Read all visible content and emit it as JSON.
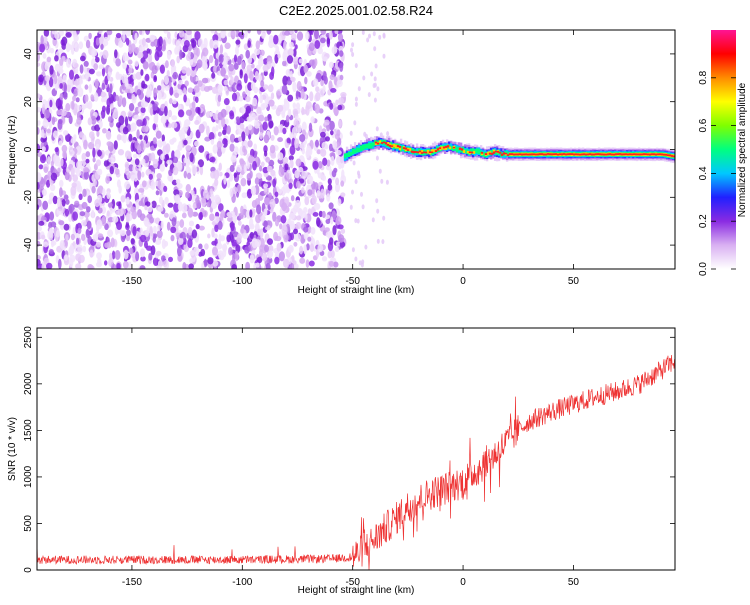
{
  "title": "C2E2.2025.001.02.58.R24",
  "chart_data": [
    {
      "type": "heatmap",
      "xlabel": "Height of straight line (km)",
      "ylabel": "Frequency (Hz)",
      "xlim": [
        -193,
        96
      ],
      "ylim": [
        -50,
        50
      ],
      "x_ticks": [
        -150,
        -100,
        -50,
        0,
        50
      ],
      "y_ticks": [
        -40,
        -20,
        0,
        20,
        40
      ],
      "colorbar": {
        "label": "Normalized spectral amplitude",
        "range": [
          0,
          1
        ],
        "ticks": [
          "0.0",
          "0.2",
          "0.4",
          "0.6",
          "0.8"
        ],
        "colors": [
          "#ffffff",
          "#d9b0f2",
          "#8a2be2",
          "#2020ff",
          "#00c8ff",
          "#00ff80",
          "#7fff00",
          "#ffff00",
          "#ff8c00",
          "#ff0000",
          "#ff1493"
        ]
      },
      "noise_region_x": [
        -193,
        -54
      ],
      "signal_track": {
        "x": [
          -54,
          -50,
          -46,
          -42,
          -38,
          -34,
          -30,
          -26,
          -22,
          -18,
          -14,
          -10,
          -6,
          -2,
          2,
          6,
          10,
          14,
          18,
          22,
          30,
          40,
          50,
          60,
          70,
          80,
          90,
          96
        ],
        "freq": [
          -3,
          -1,
          1,
          2,
          3,
          2,
          1,
          0,
          -1,
          -1,
          -1,
          1,
          1,
          0,
          -1,
          -1,
          -2,
          -1,
          -2,
          -2,
          -2,
          -2,
          -2,
          -2,
          -2,
          -2,
          -2,
          -3
        ]
      }
    },
    {
      "type": "line",
      "xlabel": "Height of straight line (km)",
      "ylabel": "SNR (10 * v/v)",
      "xlim": [
        -193,
        96
      ],
      "ylim": [
        0,
        2600
      ],
      "x_ticks": [
        -150,
        -100,
        -50,
        0,
        50
      ],
      "y_ticks": [
        0,
        500,
        1000,
        1500,
        2000,
        2500
      ],
      "line_color": "#ee3333",
      "trend": {
        "x": [
          -193,
          -150,
          -100,
          -60,
          -50,
          -45,
          -40,
          -35,
          -30,
          -25,
          -20,
          -15,
          -10,
          -5,
          0,
          5,
          10,
          15,
          20,
          25,
          30,
          40,
          50,
          60,
          70,
          80,
          90,
          96
        ],
        "y": [
          110,
          110,
          110,
          120,
          140,
          220,
          330,
          450,
          560,
          680,
          750,
          820,
          860,
          900,
          950,
          1050,
          1150,
          1250,
          1380,
          1500,
          1600,
          1700,
          1780,
          1860,
          1920,
          2000,
          2150,
          2250
        ]
      }
    }
  ]
}
